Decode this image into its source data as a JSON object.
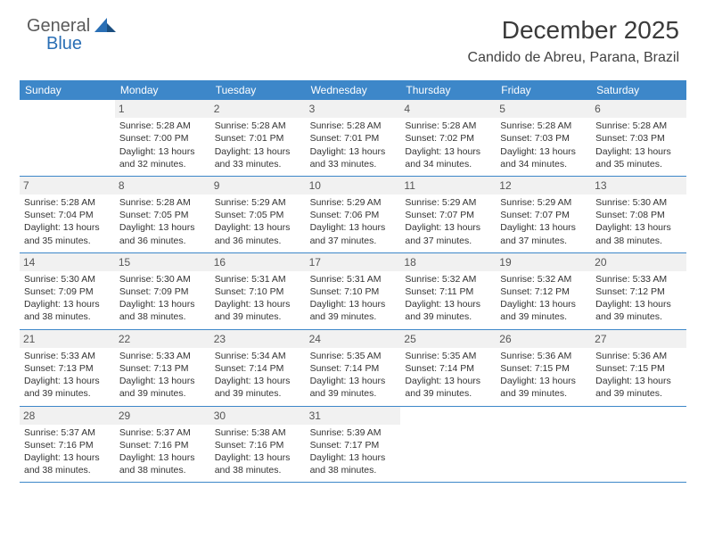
{
  "brand": {
    "part1": "General",
    "part2": "Blue",
    "accent": "#2a6fb5",
    "text_color": "#5a5a5a"
  },
  "title": "December 2025",
  "location": "Candido de Abreu, Parana, Brazil",
  "colors": {
    "header_bg": "#3d87c9",
    "header_fg": "#ffffff",
    "daynum_bg": "#f1f1f1",
    "divider": "#3d87c9",
    "text": "#333333"
  },
  "dow": [
    "Sunday",
    "Monday",
    "Tuesday",
    "Wednesday",
    "Thursday",
    "Friday",
    "Saturday"
  ],
  "weeks": [
    [
      {
        "n": "",
        "sr": "",
        "ss": "",
        "dl": ""
      },
      {
        "n": "1",
        "sr": "Sunrise: 5:28 AM",
        "ss": "Sunset: 7:00 PM",
        "dl": "Daylight: 13 hours and 32 minutes."
      },
      {
        "n": "2",
        "sr": "Sunrise: 5:28 AM",
        "ss": "Sunset: 7:01 PM",
        "dl": "Daylight: 13 hours and 33 minutes."
      },
      {
        "n": "3",
        "sr": "Sunrise: 5:28 AM",
        "ss": "Sunset: 7:01 PM",
        "dl": "Daylight: 13 hours and 33 minutes."
      },
      {
        "n": "4",
        "sr": "Sunrise: 5:28 AM",
        "ss": "Sunset: 7:02 PM",
        "dl": "Daylight: 13 hours and 34 minutes."
      },
      {
        "n": "5",
        "sr": "Sunrise: 5:28 AM",
        "ss": "Sunset: 7:03 PM",
        "dl": "Daylight: 13 hours and 34 minutes."
      },
      {
        "n": "6",
        "sr": "Sunrise: 5:28 AM",
        "ss": "Sunset: 7:03 PM",
        "dl": "Daylight: 13 hours and 35 minutes."
      }
    ],
    [
      {
        "n": "7",
        "sr": "Sunrise: 5:28 AM",
        "ss": "Sunset: 7:04 PM",
        "dl": "Daylight: 13 hours and 35 minutes."
      },
      {
        "n": "8",
        "sr": "Sunrise: 5:28 AM",
        "ss": "Sunset: 7:05 PM",
        "dl": "Daylight: 13 hours and 36 minutes."
      },
      {
        "n": "9",
        "sr": "Sunrise: 5:29 AM",
        "ss": "Sunset: 7:05 PM",
        "dl": "Daylight: 13 hours and 36 minutes."
      },
      {
        "n": "10",
        "sr": "Sunrise: 5:29 AM",
        "ss": "Sunset: 7:06 PM",
        "dl": "Daylight: 13 hours and 37 minutes."
      },
      {
        "n": "11",
        "sr": "Sunrise: 5:29 AM",
        "ss": "Sunset: 7:07 PM",
        "dl": "Daylight: 13 hours and 37 minutes."
      },
      {
        "n": "12",
        "sr": "Sunrise: 5:29 AM",
        "ss": "Sunset: 7:07 PM",
        "dl": "Daylight: 13 hours and 37 minutes."
      },
      {
        "n": "13",
        "sr": "Sunrise: 5:30 AM",
        "ss": "Sunset: 7:08 PM",
        "dl": "Daylight: 13 hours and 38 minutes."
      }
    ],
    [
      {
        "n": "14",
        "sr": "Sunrise: 5:30 AM",
        "ss": "Sunset: 7:09 PM",
        "dl": "Daylight: 13 hours and 38 minutes."
      },
      {
        "n": "15",
        "sr": "Sunrise: 5:30 AM",
        "ss": "Sunset: 7:09 PM",
        "dl": "Daylight: 13 hours and 38 minutes."
      },
      {
        "n": "16",
        "sr": "Sunrise: 5:31 AM",
        "ss": "Sunset: 7:10 PM",
        "dl": "Daylight: 13 hours and 39 minutes."
      },
      {
        "n": "17",
        "sr": "Sunrise: 5:31 AM",
        "ss": "Sunset: 7:10 PM",
        "dl": "Daylight: 13 hours and 39 minutes."
      },
      {
        "n": "18",
        "sr": "Sunrise: 5:32 AM",
        "ss": "Sunset: 7:11 PM",
        "dl": "Daylight: 13 hours and 39 minutes."
      },
      {
        "n": "19",
        "sr": "Sunrise: 5:32 AM",
        "ss": "Sunset: 7:12 PM",
        "dl": "Daylight: 13 hours and 39 minutes."
      },
      {
        "n": "20",
        "sr": "Sunrise: 5:33 AM",
        "ss": "Sunset: 7:12 PM",
        "dl": "Daylight: 13 hours and 39 minutes."
      }
    ],
    [
      {
        "n": "21",
        "sr": "Sunrise: 5:33 AM",
        "ss": "Sunset: 7:13 PM",
        "dl": "Daylight: 13 hours and 39 minutes."
      },
      {
        "n": "22",
        "sr": "Sunrise: 5:33 AM",
        "ss": "Sunset: 7:13 PM",
        "dl": "Daylight: 13 hours and 39 minutes."
      },
      {
        "n": "23",
        "sr": "Sunrise: 5:34 AM",
        "ss": "Sunset: 7:14 PM",
        "dl": "Daylight: 13 hours and 39 minutes."
      },
      {
        "n": "24",
        "sr": "Sunrise: 5:35 AM",
        "ss": "Sunset: 7:14 PM",
        "dl": "Daylight: 13 hours and 39 minutes."
      },
      {
        "n": "25",
        "sr": "Sunrise: 5:35 AM",
        "ss": "Sunset: 7:14 PM",
        "dl": "Daylight: 13 hours and 39 minutes."
      },
      {
        "n": "26",
        "sr": "Sunrise: 5:36 AM",
        "ss": "Sunset: 7:15 PM",
        "dl": "Daylight: 13 hours and 39 minutes."
      },
      {
        "n": "27",
        "sr": "Sunrise: 5:36 AM",
        "ss": "Sunset: 7:15 PM",
        "dl": "Daylight: 13 hours and 39 minutes."
      }
    ],
    [
      {
        "n": "28",
        "sr": "Sunrise: 5:37 AM",
        "ss": "Sunset: 7:16 PM",
        "dl": "Daylight: 13 hours and 38 minutes."
      },
      {
        "n": "29",
        "sr": "Sunrise: 5:37 AM",
        "ss": "Sunset: 7:16 PM",
        "dl": "Daylight: 13 hours and 38 minutes."
      },
      {
        "n": "30",
        "sr": "Sunrise: 5:38 AM",
        "ss": "Sunset: 7:16 PM",
        "dl": "Daylight: 13 hours and 38 minutes."
      },
      {
        "n": "31",
        "sr": "Sunrise: 5:39 AM",
        "ss": "Sunset: 7:17 PM",
        "dl": "Daylight: 13 hours and 38 minutes."
      },
      {
        "n": "",
        "sr": "",
        "ss": "",
        "dl": ""
      },
      {
        "n": "",
        "sr": "",
        "ss": "",
        "dl": ""
      },
      {
        "n": "",
        "sr": "",
        "ss": "",
        "dl": ""
      }
    ]
  ]
}
